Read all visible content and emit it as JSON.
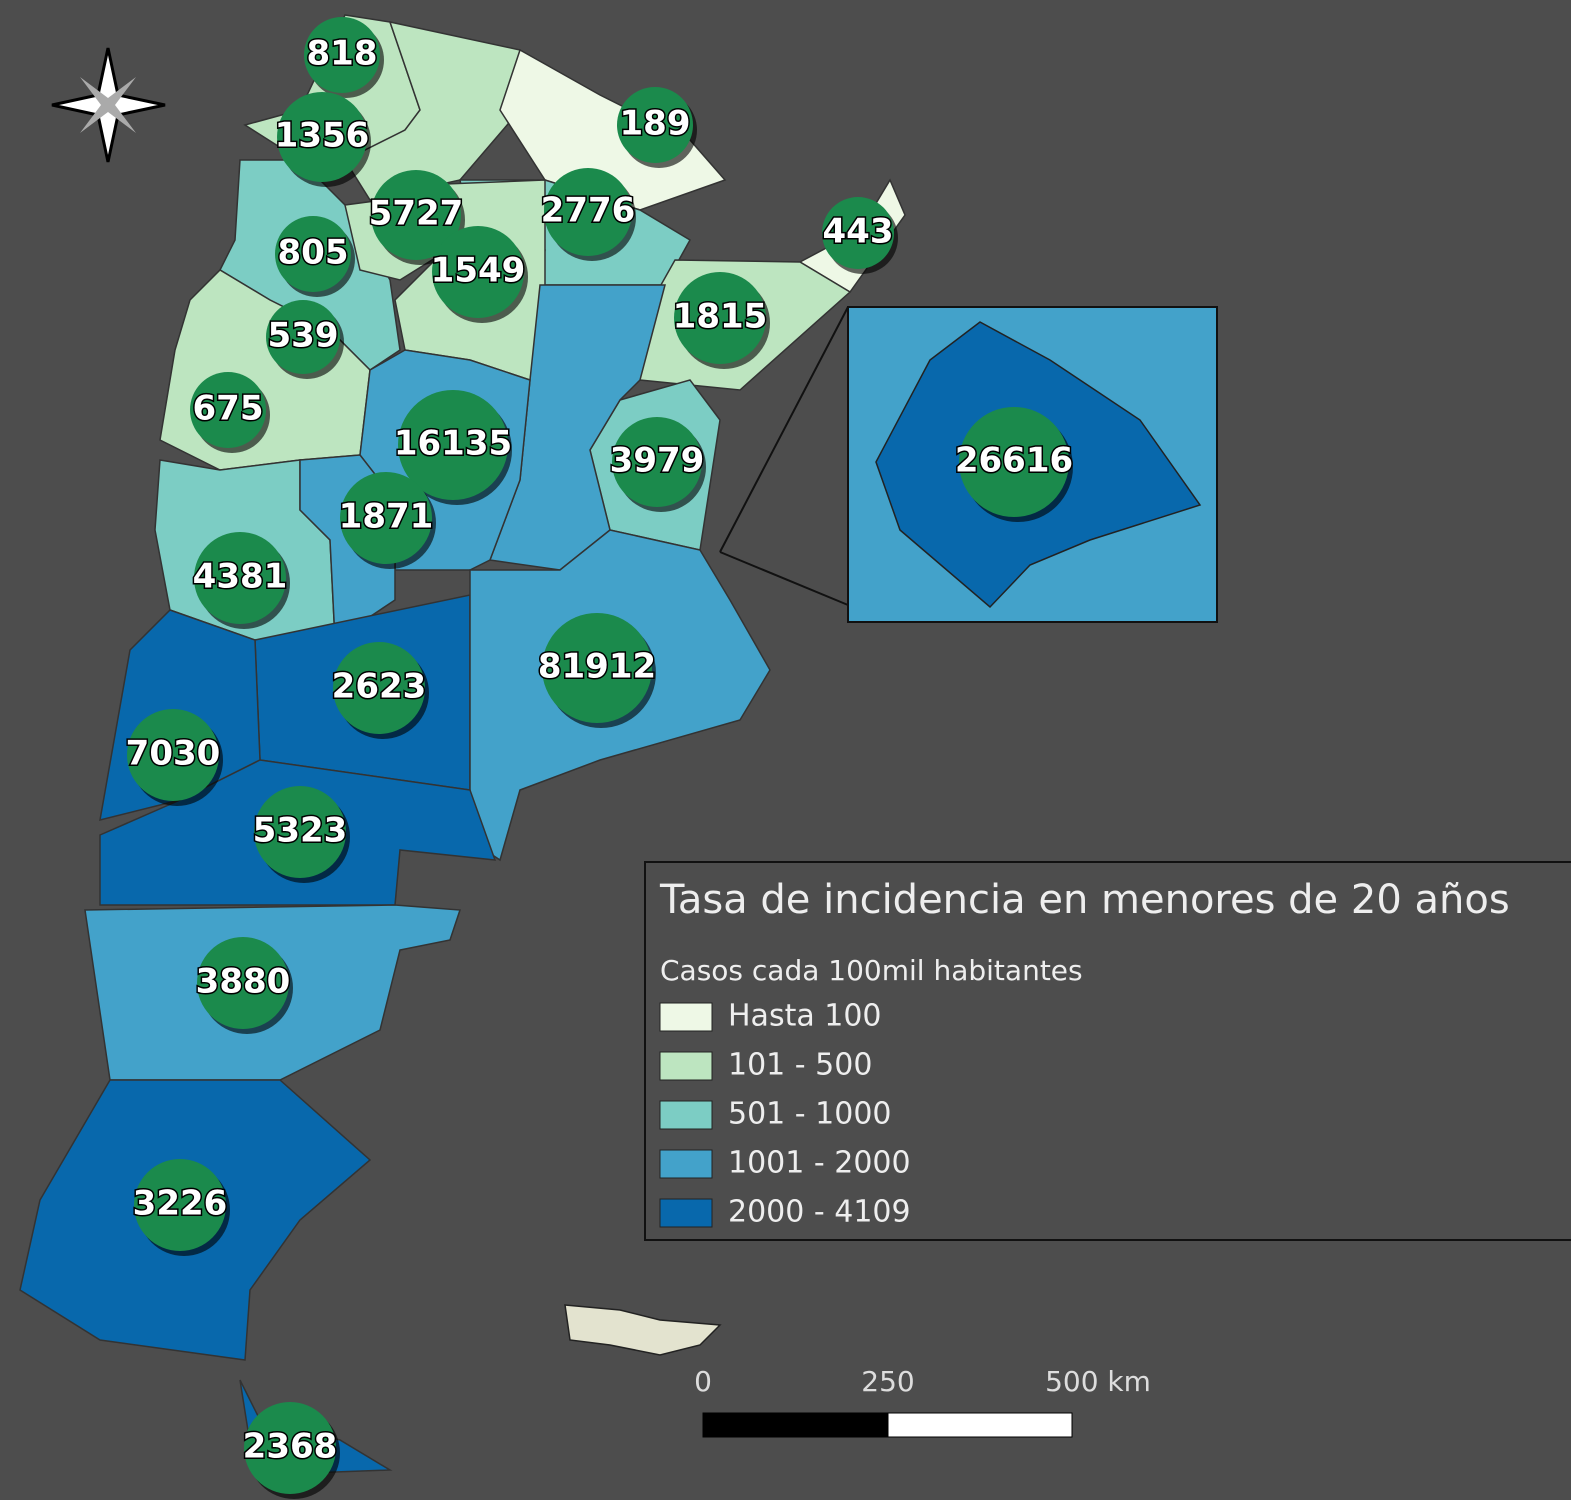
{
  "legend": {
    "title": "Tasa de incidencia en menores de 20 años",
    "subtitle": "Casos cada 100mil habitantes",
    "items": [
      {
        "label": "Hasta 100",
        "color": "#eef8e6"
      },
      {
        "label": "101 - 500",
        "color": "#bde5c0"
      },
      {
        "label": "501 - 1000",
        "color": "#7ccdc4"
      },
      {
        "label": "1001 - 2000",
        "color": "#43a2ca"
      },
      {
        "label": "2000 - 4109",
        "color": "#0868ac"
      }
    ]
  },
  "labels": [
    818,
    1356,
    189,
    5727,
    2776,
    443,
    805,
    1549,
    1815,
    539,
    675,
    16135,
    3979,
    26616,
    1871,
    4381,
    81912,
    2623,
    7030,
    5323,
    3880,
    3226,
    2368
  ],
  "scale": {
    "ticks": [
      "0",
      "250",
      "500 km"
    ]
  }
}
